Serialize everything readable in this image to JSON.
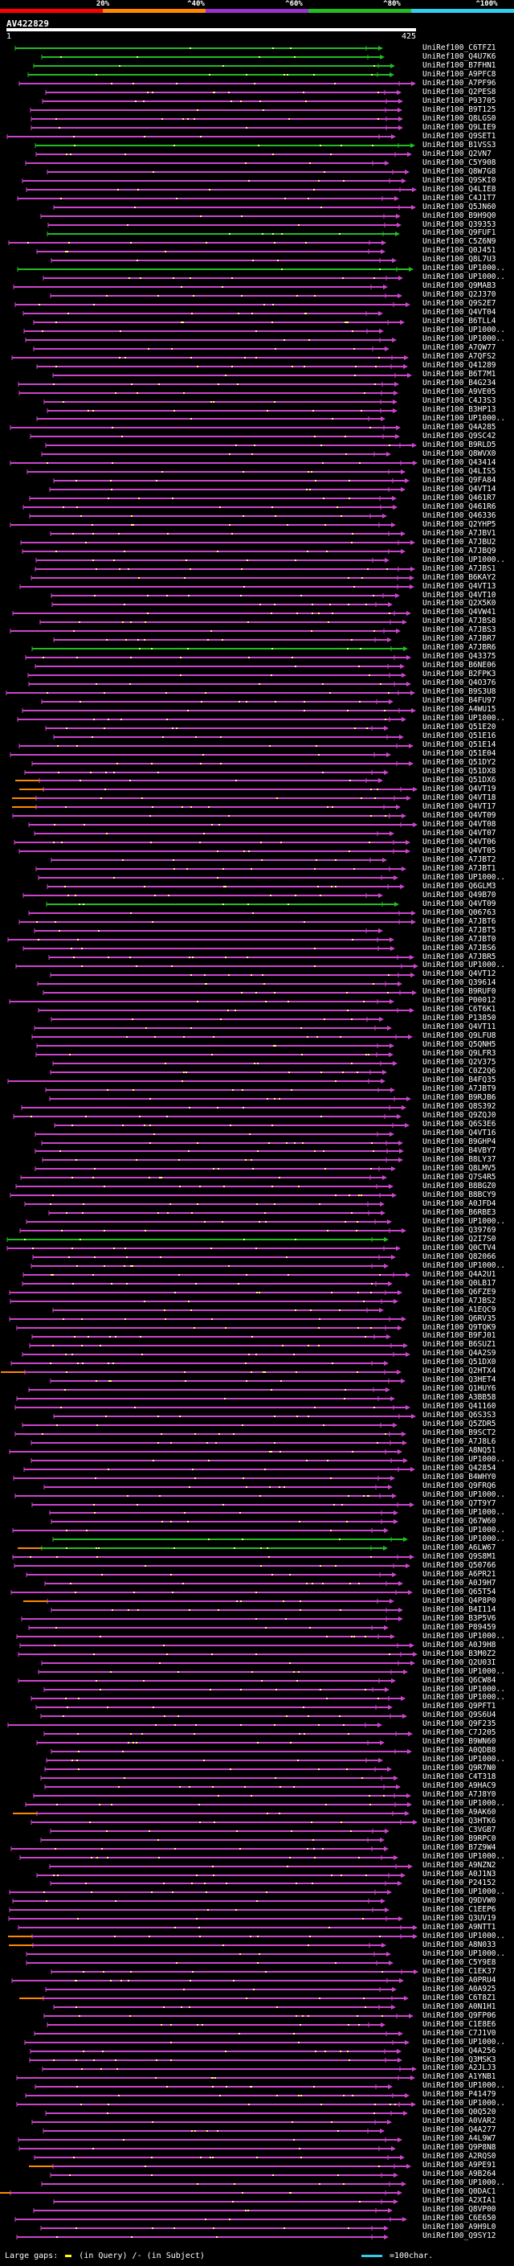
{
  "legend": {
    "labels": [
      "20%",
      "^40%",
      "^60%",
      "^80%",
      "^100%"
    ],
    "colors": [
      "#ff0000",
      "#ff8800",
      "#9933cc",
      "#22bb22",
      "#33ccee"
    ]
  },
  "query": {
    "name": "AV422829",
    "start": "1",
    "end": "425"
  },
  "hits": [
    "UniRef100_C6TFZ1",
    "UniRef100_Q4U7K6",
    "UniRef100_B7FHN1",
    "UniRef100_A9PFC8",
    "UniRef100_A7PF96",
    "UniRef100_Q2PES8",
    "UniRef100_P93705",
    "UniRef100_B9T125",
    "UniRef100_Q8LGS0",
    "UniRef100_Q9LIE9",
    "UniRef100_Q9SET1",
    "UniRef100_B1VSS3",
    "UniRef100_Q2VN7",
    "UniRef100_C5Y908",
    "UniRef100_Q8W7G8",
    "UniRef100_Q9SKI0",
    "UniRef100_Q4LIE8",
    "UniRef100_C4J1T7",
    "UniRef100_Q5JN60",
    "UniRef100_B9H9Q0",
    "UniRef100_Q39353",
    "UniRef100_Q9FUF1",
    "UniRef100_C5Z6N9",
    "UniRef100_Q0J451",
    "UniRef100_Q8L7U3",
    "UniRef100_UP1000..",
    "UniRef100_UP1000..",
    "UniRef100_Q9MAB3",
    "UniRef100_Q2J370",
    "UniRef100_Q9S2E7",
    "UniRef100_Q4VT04",
    "UniRef100_B6TLL4",
    "UniRef100_UP1000..",
    "UniRef100_UP1000..",
    "UniRef100_A7QW77",
    "UniRef100_A7QFS2",
    "UniRef100_Q41289",
    "UniRef100_B6T7M1",
    "UniRef100_B4G234",
    "UniRef100_A9VE05",
    "UniRef100_C4J3S3",
    "UniRef100_B3HP13",
    "UniRef100_UP1000..",
    "UniRef100_Q4A285",
    "UniRef100_Q9SC42",
    "UniRef100_B9RLD5",
    "UniRef100_Q8WVX0",
    "UniRef100_Q43414",
    "UniRef100_Q4LIS5",
    "UniRef100_Q9FA84",
    "UniRef100_Q4VT14",
    "UniRef100_Q461R7",
    "UniRef100_Q461R6",
    "UniRef100_Q46336",
    "UniRef100_Q2YHP5",
    "UniRef100_A7JBV1",
    "UniRef100_A7JBU2",
    "UniRef100_A7JBQ9",
    "UniRef100_UP1000..",
    "UniRef100_A7JBS1",
    "UniRef100_B6KAY2",
    "UniRef100_Q4VT13",
    "UniRef100_Q4VT10",
    "UniRef100_Q2X5K0",
    "UniRef100_Q4VW41",
    "UniRef100_A7JBS8",
    "UniRef100_A7JBS3",
    "UniRef100_A7JBR7",
    "UniRef100_A7JBR6",
    "UniRef100_Q43375",
    "UniRef100_B6NE06",
    "UniRef100_B2FPK3",
    "UniRef100_Q4O376",
    "UniRef100_B9S3U8",
    "UniRef100_B4FU97",
    "UniRef100_A4WU15",
    "UniRef100_UP1000..",
    "UniRef100_Q51E20",
    "UniRef100_Q51E16",
    "UniRef100_Q51E14",
    "UniRef100_Q51E04",
    "UniRef100_Q51DY2",
    "UniRef100_Q51DX8",
    "UniRef100_Q51DX6",
    "UniRef100_Q4VT19",
    "UniRef100_Q4VT18",
    "UniRef100_Q4VT17",
    "UniRef100_Q4VT09",
    "UniRef100_Q4VT08",
    "UniRef100_Q4VT07",
    "UniRef100_Q4VT06",
    "UniRef100_Q4VT05",
    "UniRef100_A7JBT2",
    "UniRef100_A7JBT1",
    "UniRef100_UP1000..",
    "UniRef100_Q6GLM3",
    "UniRef100_Q49B70",
    "UniRef100_Q4VT09",
    "UniRef100_Q06763",
    "UniRef100_A7JBT6",
    "UniRef100_A7JBT5",
    "UniRef100_A7JBT0",
    "UniRef100_A7JBS6",
    "UniRef100_A7JBR5",
    "UniRef100_UP1000..",
    "UniRef100_Q4VT12",
    "UniRef100_Q39614",
    "UniRef100_B9RUF0",
    "UniRef100_P00012",
    "UniRef100_C6T6K1",
    "UniRef100_P13850",
    "UniRef100_Q4VT11",
    "UniRef100_Q9LFU8",
    "UniRef100_Q5QNH5",
    "UniRef100_Q9LFR3",
    "UniRef100_Q2V375",
    "UniRef100_C0Z2Q6",
    "UniRef100_B4FQ35",
    "UniRef100_A7JBT9",
    "UniRef100_B9RJB6",
    "UniRef100_Q8S392",
    "UniRef100_Q9ZQJ0",
    "UniRef100_Q6S3E6",
    "UniRef100_Q4VT16",
    "UniRef100_B9GHP4",
    "UniRef100_B4VBY7",
    "UniRef100_B8LY37",
    "UniRef100_Q8LMV5",
    "UniRef100_Q7S4R5",
    "UniRef100_B8BGZ0",
    "UniRef100_B8BCY9",
    "UniRef100_A0JFD4",
    "UniRef100_B6RBE3",
    "UniRef100_UP1000..",
    "UniRef100_Q39769",
    "UniRef100_Q2I7S0",
    "UniRef100_Q0CTV4",
    "UniRef100_Q82066",
    "UniRef100_UP1000..",
    "UniRef100_Q4A2U1",
    "UniRef100_Q0LB17",
    "UniRef100_Q6FZE9",
    "UniRef100_A7JBS2",
    "UniRef100_A1EQC9",
    "UniRef100_Q6RV35",
    "UniRef100_Q9TQK9",
    "UniRef100_B9FJ01",
    "UniRef100_B6SUZ1",
    "UniRef100_Q4A2S9",
    "UniRef100_Q51DX0",
    "UniRef100_Q2HTX4",
    "UniRef100_Q3HET4",
    "UniRef100_Q1HUY6",
    "UniRef100_A3BB58",
    "UniRef100_Q41160",
    "UniRef100_Q6S3S3",
    "UniRef100_Q5ZDR5",
    "UniRef100_B9SCT2",
    "UniRef100_A7J8L6",
    "UniRef100_A8NQ51",
    "UniRef100_UP1000..",
    "UniRef100_Q42854",
    "UniRef100_B4WHY0",
    "UniRef100_Q9FRQ6",
    "UniRef100_UP1000..",
    "UniRef100_Q7T9Y7",
    "UniRef100_UP1000..",
    "UniRef100_Q67W60",
    "UniRef100_UP1000..",
    "UniRef100_UP1000..",
    "UniRef100_A6LW67",
    "UniRef100_Q9S8M1",
    "UniRef100_Q50766",
    "UniRef100_A6PR21",
    "UniRef100_A0J9H7",
    "UniRef100_Q65T54",
    "UniRef100_Q4P8P0",
    "UniRef100_B4I114",
    "UniRef100_B3P5V6",
    "UniRef100_P89459",
    "UniRef100_UP1000..",
    "UniRef100_A0J9H8",
    "UniRef100_B3M0Z2",
    "UniRef100_Q2U03I",
    "UniRef100_UP1000..",
    "UniRef100_Q6CW84",
    "UniRef100_UP1000..",
    "UniRef100_UP1000..",
    "UniRef100_Q9PFT1",
    "UniRef100_Q9S6U4",
    "UniRef100_Q9F235",
    "UniRef100_C7J205",
    "UniRef100_B9WN60",
    "UniRef100_A0QDB8",
    "UniRef100_UP1000..",
    "UniRef100_Q9R7N0",
    "UniRef100_C4T318",
    "UniRef100_A9HAC9",
    "UniRef100_A7J8Y0",
    "UniRef100_UP1000..",
    "UniRef100_A9AK60",
    "UniRef100_Q3HTK6",
    "UniRef100_C3VGB7",
    "UniRef100_B9RPC0",
    "UniRef100_B7Z9W4",
    "UniRef100_UP1000..",
    "UniRef100_A9NZN2",
    "UniRef100_A0J1N3",
    "UniRef100_P24152",
    "UniRef100_UP1000..",
    "UniRef100_Q9DVW0",
    "UniRef100_C1EEP6",
    "UniRef100_Q3UV19",
    "UniRef100_A9NTT1",
    "UniRef100_UP1000..",
    "UniRef100_A8N033",
    "UniRef100_UP1000..",
    "UniRef100_C5Y9E8",
    "UniRef100_C1EK37",
    "UniRef100_A0PRU4",
    "UniRef100_A0A925",
    "UniRef100_C6T8Z1",
    "UniRef100_A0N1H1",
    "UniRef100_Q9FP06",
    "UniRef100_C1E8E6",
    "UniRef100_C7J1V0",
    "UniRef100_UP1000..",
    "UniRef100_Q4A256",
    "UniRef100_Q3MSK3",
    "UniRef100_A2JLJ3",
    "UniRef100_A1YNB1",
    "UniRef100_UP1000..",
    "UniRef100_P41479",
    "UniRef100_UP1000..",
    "UniRef100_Q0Q520",
    "UniRef100_A0VAR2",
    "UniRef100_Q4A277",
    "UniRef100_A4L9W7",
    "UniRef100_Q9P8N8",
    "UniRef100_A2RQS0",
    "UniRef100_A9PE91",
    "UniRef100_A9B264",
    "UniRef100_UP1000..",
    "UniRef100_Q0DAC1",
    "UniRef100_A2XIA1",
    "UniRef100_Q8VP00",
    "UniRef100_C6E650",
    "UniRef100_A9H9L0",
    "UniRef100_Q9SY12"
  ],
  "footer": {
    "large_gaps": "Large gaps:",
    "in_query": "(in Query)",
    "in_subject": "/- (in Subject)",
    "scale": "=100char."
  }
}
